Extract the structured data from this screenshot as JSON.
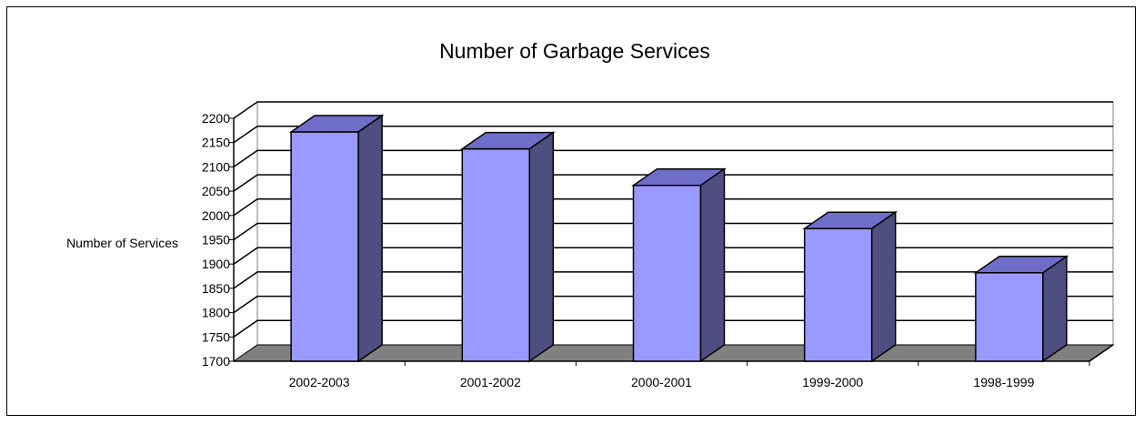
{
  "chart_data": {
    "type": "bar",
    "title": "Number of Garbage Services",
    "xlabel": "",
    "ylabel": "Number of Services",
    "categories": [
      "2002-2003",
      "2001-2002",
      "2000-2001",
      "1999-2000",
      "1998-1999"
    ],
    "values": [
      2172,
      2137,
      2062,
      1973,
      1882
    ],
    "ylim": [
      1700,
      2200
    ],
    "ytick_step": 50,
    "grid": true,
    "legend": "none",
    "style": "3d-column",
    "colors": {
      "bar_front": "#9999FF",
      "bar_top": "#6E6EC9",
      "bar_side": "#4E4E80",
      "floor": "#808080",
      "wall": "#FFFFFF",
      "grid": "#000000"
    }
  }
}
